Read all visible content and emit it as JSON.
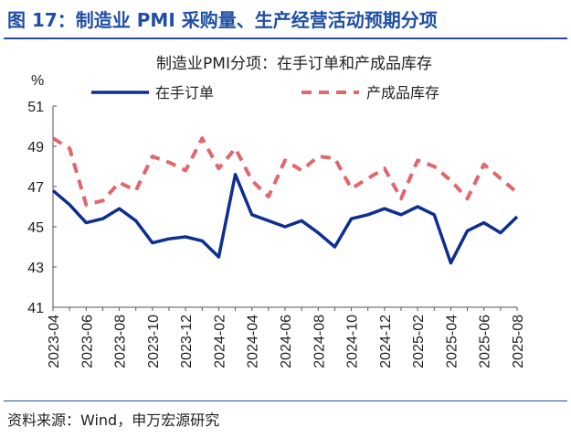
{
  "header": {
    "figure_title": "图 17：制造业 PMI 采购量、生产经营活动预期分项"
  },
  "footer": {
    "source": "资料来源：Wind，申万宏源研究"
  },
  "chart_data": {
    "type": "line",
    "title": "制造业PMI分项：在手订单和产成品库存",
    "ylabel": "%",
    "xlabel": "",
    "ylim": [
      41,
      51
    ],
    "yticks": [
      41,
      43,
      45,
      47,
      49,
      51
    ],
    "grid": false,
    "legend_position": "top",
    "x": [
      "2023-04",
      "2023-05",
      "2023-06",
      "2023-07",
      "2023-08",
      "2023-09",
      "2023-10",
      "2023-11",
      "2023-12",
      "2024-01",
      "2024-02",
      "2024-03",
      "2024-04",
      "2024-05",
      "2024-06",
      "2024-07",
      "2024-08",
      "2024-09",
      "2024-10",
      "2024-11",
      "2024-12",
      "2025-01",
      "2025-02",
      "2025-03",
      "2025-04",
      "2025-05",
      "2025-06",
      "2025-07",
      "2025-08"
    ],
    "xtick_labels": [
      "2023-04",
      "2023-06",
      "2023-08",
      "2023-10",
      "2023-12",
      "2024-02",
      "2024-04",
      "2024-06",
      "2024-08",
      "2024-10",
      "2024-12",
      "2025-02",
      "2025-04",
      "2025-06",
      "2025-08"
    ],
    "series": [
      {
        "name": "在手订单",
        "color": "#0d2f8f",
        "style": "solid",
        "values": [
          46.8,
          46.1,
          45.2,
          45.4,
          45.9,
          45.3,
          44.2,
          44.4,
          44.5,
          44.3,
          43.5,
          47.6,
          45.6,
          45.3,
          45.0,
          45.3,
          44.7,
          44.0,
          45.4,
          45.6,
          45.9,
          45.6,
          46.0,
          45.6,
          43.2,
          44.8,
          45.2,
          44.7,
          45.5
        ]
      },
      {
        "name": "产成品库存",
        "color": "#e0676c",
        "style": "dashed",
        "values": [
          49.4,
          48.9,
          46.1,
          46.3,
          47.2,
          46.8,
          48.5,
          48.2,
          47.8,
          49.4,
          47.9,
          48.9,
          47.3,
          46.5,
          48.3,
          47.8,
          48.5,
          48.4,
          46.9,
          47.4,
          47.9,
          46.4,
          48.3,
          48.0,
          47.3,
          46.4,
          48.1,
          47.4,
          46.7
        ]
      }
    ]
  }
}
